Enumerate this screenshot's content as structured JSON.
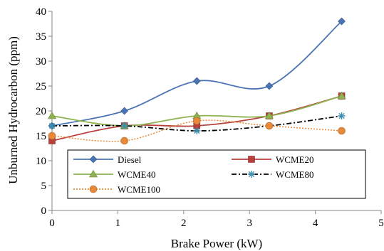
{
  "chart_data": {
    "type": "line",
    "xlabel": "Brake Power (kW)",
    "ylabel": "Unburned Hydrocarbon (ppm)",
    "xlim": [
      0,
      5
    ],
    "ylim": [
      0,
      40
    ],
    "xticks": [
      0,
      1,
      2,
      3,
      4,
      5
    ],
    "yticks": [
      0,
      5,
      10,
      15,
      20,
      25,
      30,
      35,
      40
    ],
    "x": [
      0,
      1.1,
      2.2,
      3.3,
      4.4
    ],
    "grid": false,
    "legend_position": "lower-center inside plot",
    "series": [
      {
        "name": "Diesel",
        "values": [
          17,
          20,
          26,
          25,
          38
        ],
        "color": "#4a74b4",
        "marker": "diamond",
        "dash": "solid"
      },
      {
        "name": "WCME20",
        "values": [
          14,
          17,
          17,
          19,
          23
        ],
        "color": "#b8403a",
        "marker": "square",
        "dash": "solid"
      },
      {
        "name": "WCME40",
        "values": [
          19,
          17,
          19,
          19,
          23
        ],
        "color": "#8fb350",
        "marker": "triangle",
        "dash": "solid"
      },
      {
        "name": "WCME80",
        "values": [
          17,
          17,
          16,
          17,
          19
        ],
        "color": "#000000",
        "marker": "asterisk",
        "dash": "dashdot",
        "marker_color": "#3a8fb0"
      },
      {
        "name": "WCME100",
        "values": [
          15,
          14,
          18,
          17,
          16
        ],
        "color": "#e8893a",
        "marker": "circle",
        "dash": "dotted"
      }
    ]
  }
}
